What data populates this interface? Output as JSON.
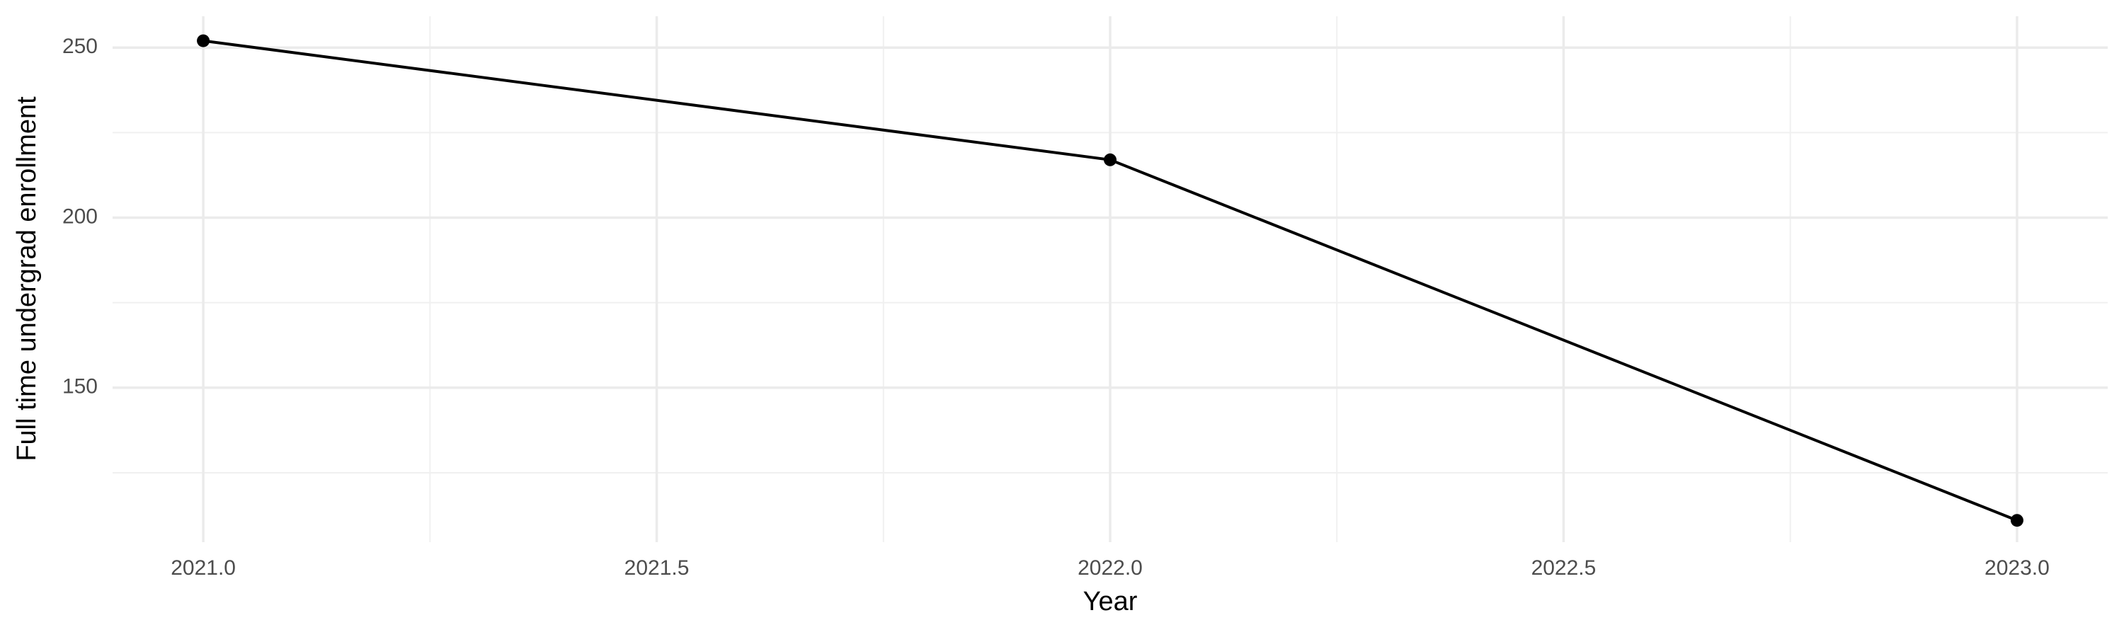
{
  "chart_data": {
    "type": "line",
    "x_label": "Year",
    "y_label": "Full time undergrad enrollment",
    "x": [
      2021,
      2022,
      2023
    ],
    "values": [
      252,
      217,
      111
    ],
    "color": "#000000",
    "xlim": [
      2020.9,
      2023.1
    ],
    "ylim": [
      104.6,
      259.2
    ],
    "xticks": [
      {
        "value": 2021,
        "label": "2021.0"
      },
      {
        "value": 2021.5,
        "label": "2021.5"
      },
      {
        "value": 2022,
        "label": "2022.0"
      },
      {
        "value": 2022.5,
        "label": "2022.5"
      },
      {
        "value": 2023,
        "label": "2023.0"
      }
    ],
    "yticks": [
      150,
      200,
      250
    ],
    "grid": true
  }
}
